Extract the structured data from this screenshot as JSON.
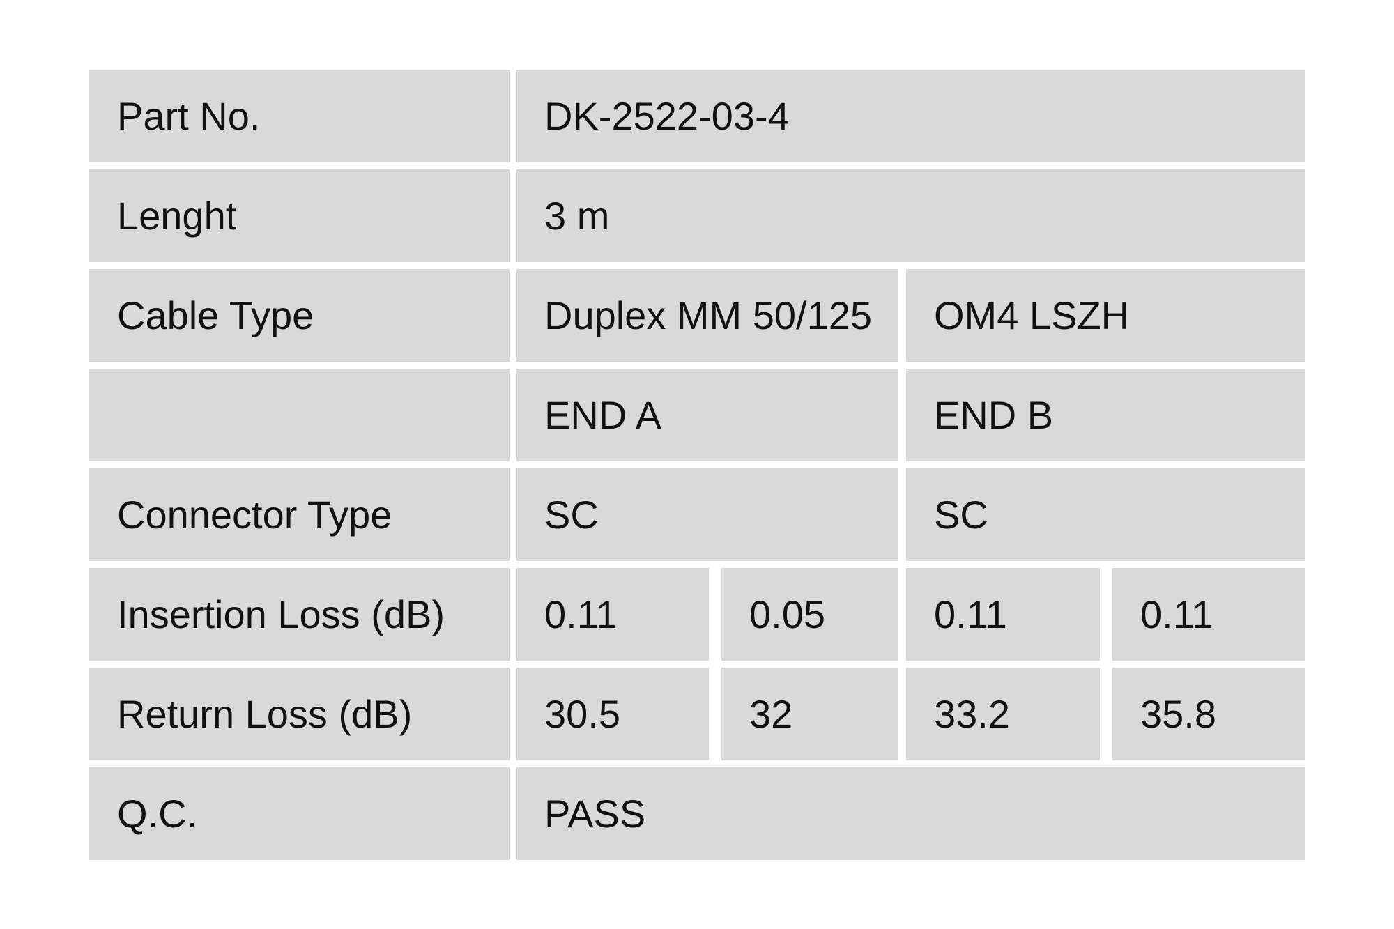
{
  "page": {
    "background_color": "#ffffff",
    "cell_background_color": "#d9d9d9",
    "text_color": "#111111"
  },
  "table": {
    "part_no": {
      "label": "Part No.",
      "value": "DK-2522-03-4"
    },
    "length": {
      "label": "Lenght",
      "value": "3 m"
    },
    "cable_type": {
      "label": "Cable Type",
      "value_a": "Duplex MM 50/125",
      "value_b": "OM4 LSZH"
    },
    "ends_header": {
      "label": "",
      "end_a": "END A",
      "end_b": "END B"
    },
    "connector_type": {
      "label": "Connector Type",
      "end_a": "SC",
      "end_b": "SC"
    },
    "insertion_loss": {
      "label": "Insertion Loss (dB)",
      "end_a_1": "0.11",
      "end_a_2": "0.05",
      "end_b_1": "0.11",
      "end_b_2": "0.11"
    },
    "return_loss": {
      "label": "Return Loss (dB)",
      "end_a_1": "30.5",
      "end_a_2": "32",
      "end_b_1": "33.2",
      "end_b_2": "35.8"
    },
    "qc": {
      "label": "Q.C.",
      "value": "PASS"
    }
  }
}
